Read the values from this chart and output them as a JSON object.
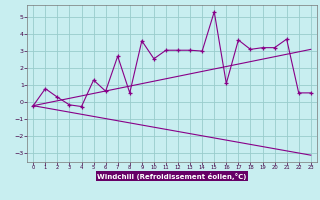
{
  "xlabel": "Windchill (Refroidissement éolien,°C)",
  "bg_color": "#c8eef0",
  "line_color": "#880088",
  "grid_color": "#99cccc",
  "xlabel_bg": "#660066",
  "xlabel_fg": "#ffffff",
  "xlim": [
    -0.5,
    23.5
  ],
  "ylim": [
    -3.5,
    5.7
  ],
  "xticks": [
    0,
    1,
    2,
    3,
    4,
    5,
    6,
    7,
    8,
    9,
    10,
    11,
    12,
    13,
    14,
    15,
    16,
    17,
    18,
    19,
    20,
    21,
    22,
    23
  ],
  "yticks": [
    -3,
    -2,
    -1,
    0,
    1,
    2,
    3,
    4,
    5
  ],
  "line1_x": [
    0,
    1,
    2,
    3,
    4,
    5,
    6,
    7,
    8,
    9,
    10,
    11,
    12,
    13,
    14,
    15,
    16,
    17,
    18,
    19,
    20,
    21,
    22,
    23
  ],
  "line1_y": [
    -0.2,
    0.8,
    0.3,
    -0.15,
    -0.25,
    1.3,
    0.65,
    2.7,
    0.55,
    3.6,
    2.55,
    3.05,
    3.05,
    3.05,
    3.0,
    5.3,
    1.1,
    3.65,
    3.1,
    3.2,
    3.2,
    3.7,
    0.55,
    0.55
  ],
  "line2_x": [
    0,
    23
  ],
  "line2_y": [
    -0.2,
    3.1
  ],
  "line3_x": [
    0,
    23
  ],
  "line3_y": [
    -0.2,
    -3.1
  ]
}
